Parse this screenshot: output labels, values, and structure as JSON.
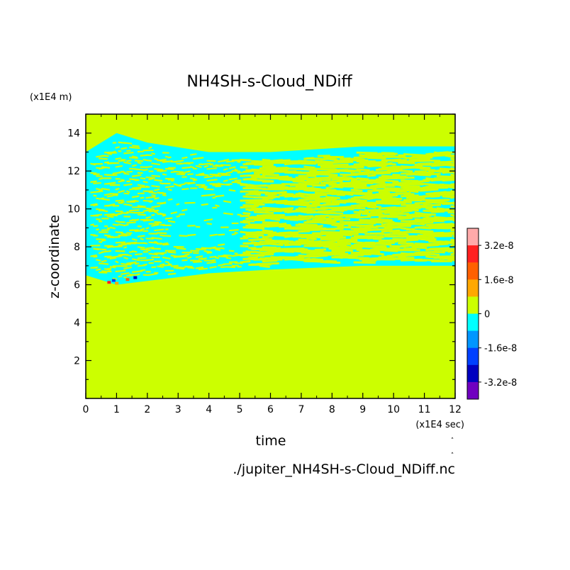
{
  "chart_data": {
    "type": "heatmap",
    "title": "NH4SH-s-Cloud_NDiff",
    "xlabel": "time",
    "ylabel": "z-coordinate",
    "x_unit": "(x1E4 sec)",
    "y_unit": "(x1E4 m)",
    "source_file": "./jupiter_NH4SH-s-Cloud_NDiff.nc",
    "xlim": [
      0,
      12
    ],
    "ylim": [
      0,
      15
    ],
    "x_ticks": [
      "0",
      "1",
      "2",
      "3",
      "4",
      "5",
      "6",
      "7",
      "8",
      "9",
      "10",
      "11",
      "12"
    ],
    "y_ticks": [
      "2",
      "4",
      "6",
      "8",
      "10",
      "12",
      "14"
    ],
    "colorbar": {
      "labels": [
        "3.2e-8",
        "1.6e-8",
        "0",
        "-1.6e-8",
        "-3.2e-8"
      ],
      "levels": [
        {
          "color": "#ffaaaa"
        },
        {
          "color": "#ff2020"
        },
        {
          "color": "#ff6000"
        },
        {
          "color": "#ffa800"
        },
        {
          "color": "#ccff00"
        },
        {
          "color": "#00ffff"
        },
        {
          "color": "#0096ff"
        },
        {
          "color": "#0040ff"
        },
        {
          "color": "#0000c0"
        },
        {
          "color": "#7000c0"
        }
      ]
    },
    "regions": {
      "zero_color": "#ccff00",
      "negative_color": "#00ffff",
      "cloud_band_top_z": [
        13.0,
        14.0,
        13.5,
        13.0,
        13.0,
        13.3,
        13.3
      ],
      "cloud_band_bottom_z": [
        6.5,
        6.0,
        6.2,
        6.6,
        6.8,
        7.0,
        7.0
      ],
      "band_time_points": [
        0,
        1,
        2,
        4,
        6,
        9,
        12
      ]
    }
  }
}
